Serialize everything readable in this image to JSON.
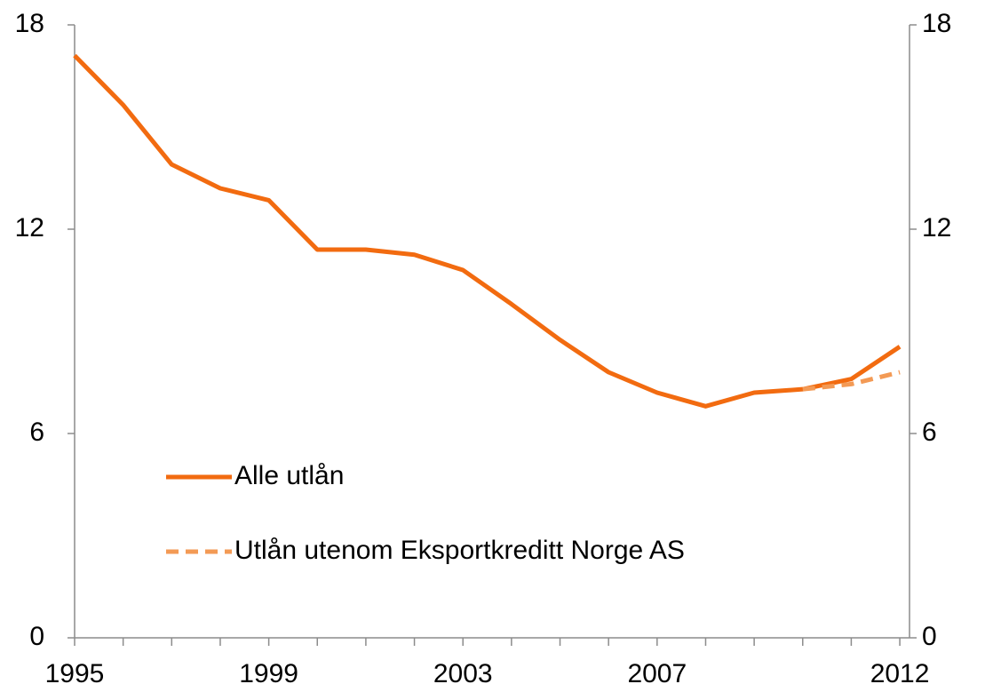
{
  "chart_data": {
    "type": "line",
    "x": [
      1995,
      1996,
      1997,
      1998,
      1999,
      2000,
      2001,
      2002,
      2003,
      2004,
      2005,
      2006,
      2007,
      2008,
      2009,
      2010,
      2011,
      2012
    ],
    "series": [
      {
        "name": "Alle utlån",
        "color": "#f26b10",
        "dash": false,
        "values": [
          17.1,
          15.65,
          13.9,
          13.2,
          12.85,
          11.4,
          11.4,
          11.25,
          10.8,
          9.8,
          8.75,
          7.8,
          7.2,
          6.8,
          7.2,
          7.3,
          7.6,
          8.55
        ]
      },
      {
        "name": "Utlån utenom Eksportkreditt Norge AS",
        "color": "#f39a55",
        "dash": true,
        "values": [
          null,
          null,
          null,
          null,
          null,
          null,
          null,
          null,
          null,
          null,
          null,
          null,
          null,
          null,
          null,
          7.3,
          7.45,
          7.8
        ]
      }
    ],
    "xlim": [
      1995,
      2012.2
    ],
    "xticks": [
      1995,
      1999,
      2003,
      2007,
      2012
    ],
    "ylim": [
      0,
      18
    ],
    "yticks": [
      0,
      6,
      12,
      18
    ],
    "y2lim": [
      0,
      18
    ],
    "y2ticks": [
      0,
      6,
      12,
      18
    ],
    "grid": false,
    "legend": "lower left"
  }
}
